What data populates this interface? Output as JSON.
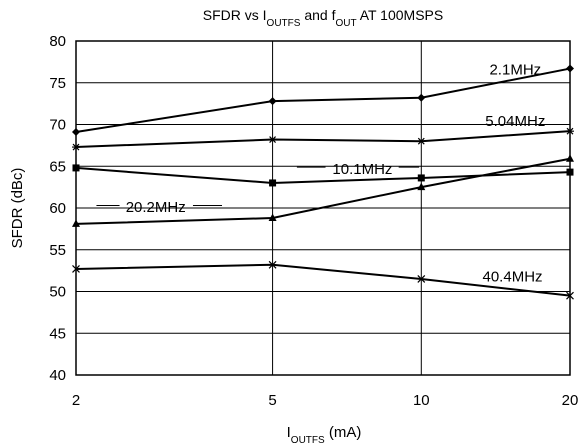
{
  "chart_data": {
    "type": "line",
    "title": {
      "parts": [
        {
          "text": "SFDR vs I"
        },
        {
          "text": "OUTFS",
          "sub": true
        },
        {
          "text": " and f"
        },
        {
          "text": "OUT",
          "sub": true
        },
        {
          "text": " AT 100MSPS"
        }
      ]
    },
    "xlabel": {
      "parts": [
        {
          "text": "I"
        },
        {
          "text": "OUTFS",
          "sub": true
        },
        {
          "text": " (mA)"
        }
      ]
    },
    "ylabel": "SFDR (dBc)",
    "x_scale": "log",
    "x_ticks": [
      2,
      5,
      10,
      20
    ],
    "x_tick_labels": [
      "2",
      "5",
      "10",
      "20"
    ],
    "xlim": [
      2,
      20
    ],
    "ylim": [
      40,
      80
    ],
    "y_ticks": [
      40,
      45,
      50,
      55,
      60,
      65,
      70,
      75,
      80
    ],
    "y_tick_labels": [
      "40",
      "45",
      "50",
      "55",
      "60",
      "65",
      "70",
      "75",
      "80"
    ],
    "grid": true,
    "series": [
      {
        "name": "2.1MHz",
        "marker": "diamond",
        "x": [
          2,
          5,
          10,
          20
        ],
        "y": [
          69.1,
          72.8,
          73.2,
          76.7
        ]
      },
      {
        "name": "5.04MHz",
        "marker": "star",
        "x": [
          2,
          5,
          10,
          20
        ],
        "y": [
          67.3,
          68.2,
          68.0,
          69.2
        ]
      },
      {
        "name": "10.1MHz",
        "marker": "square",
        "x": [
          2,
          5,
          10,
          20
        ],
        "y": [
          64.8,
          63.0,
          63.6,
          64.3
        ]
      },
      {
        "name": "20.2MHz",
        "marker": "triangle",
        "x": [
          2,
          5,
          10,
          20
        ],
        "y": [
          58.1,
          58.8,
          62.5,
          65.9
        ]
      },
      {
        "name": "40.4MHz",
        "marker": "x",
        "x": [
          2,
          5,
          10,
          20
        ],
        "y": [
          52.7,
          53.2,
          51.5,
          49.5
        ]
      }
    ]
  }
}
